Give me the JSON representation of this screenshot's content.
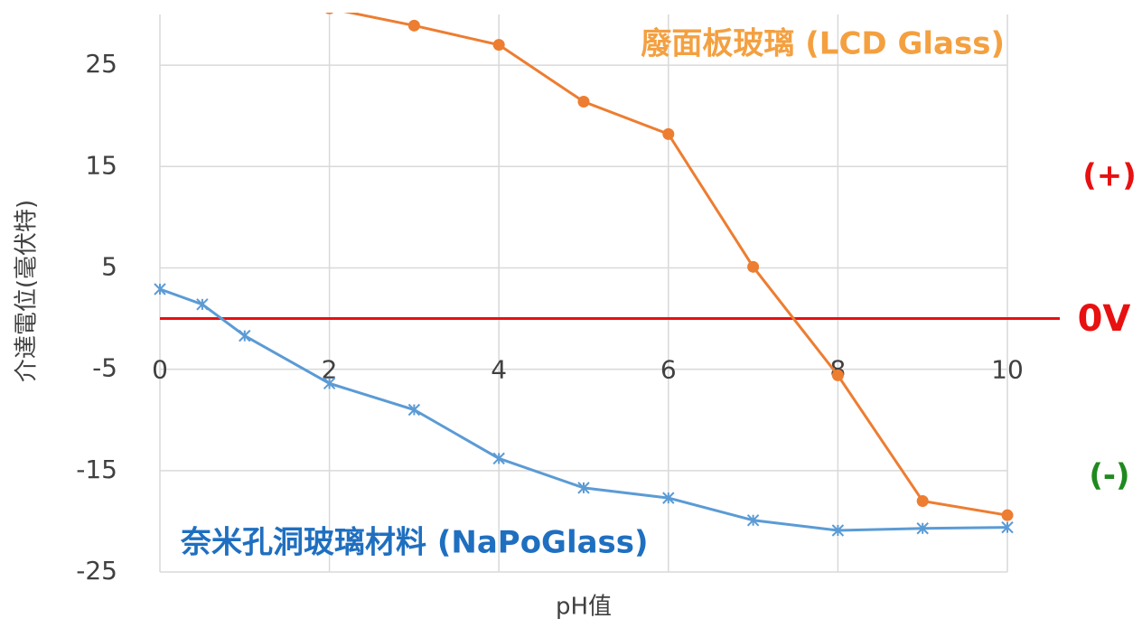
{
  "chart_data": {
    "type": "line",
    "xlabel": "pH值",
    "ylabel": "介達電位(毫伏特)",
    "xlim": [
      0,
      10
    ],
    "xticks": [
      0,
      2,
      4,
      6,
      8,
      10
    ],
    "ylim": [
      -25,
      30
    ],
    "yticks": [
      -25,
      -15,
      -5,
      5,
      15,
      25
    ],
    "grid": true,
    "series": [
      {
        "name": "廢面板玻璃 (LCD Glass)",
        "color": "#ed7d31",
        "label_color": "#f4a040",
        "marker": "circle",
        "x": [
          2,
          3,
          4,
          5,
          6,
          7,
          8,
          9,
          10
        ],
        "values": [
          30.6,
          28.9,
          27.0,
          21.4,
          18.2,
          5.1,
          -5.6,
          -18.0,
          -19.4
        ]
      },
      {
        "name": "奈米孔洞玻璃材料 (NaPoGlass)",
        "color": "#5b9bd5",
        "label_color": "#1f6fc0",
        "marker": "asterisk",
        "x": [
          0,
          0.5,
          1,
          2,
          3,
          4,
          5,
          6,
          7,
          8,
          9,
          10
        ],
        "values": [
          2.9,
          1.4,
          -1.7,
          -6.4,
          -9.0,
          -13.8,
          -16.7,
          -17.7,
          -19.9,
          -20.9,
          -20.7,
          -20.6
        ]
      }
    ],
    "reference_line": {
      "value": 0,
      "color": "#e81010"
    },
    "annotations": [
      {
        "text": "0V",
        "color": "#e81010"
      },
      {
        "text": "(+)",
        "color": "#e81010"
      },
      {
        "text": "(-)",
        "color": "#1e8a1e"
      }
    ]
  }
}
